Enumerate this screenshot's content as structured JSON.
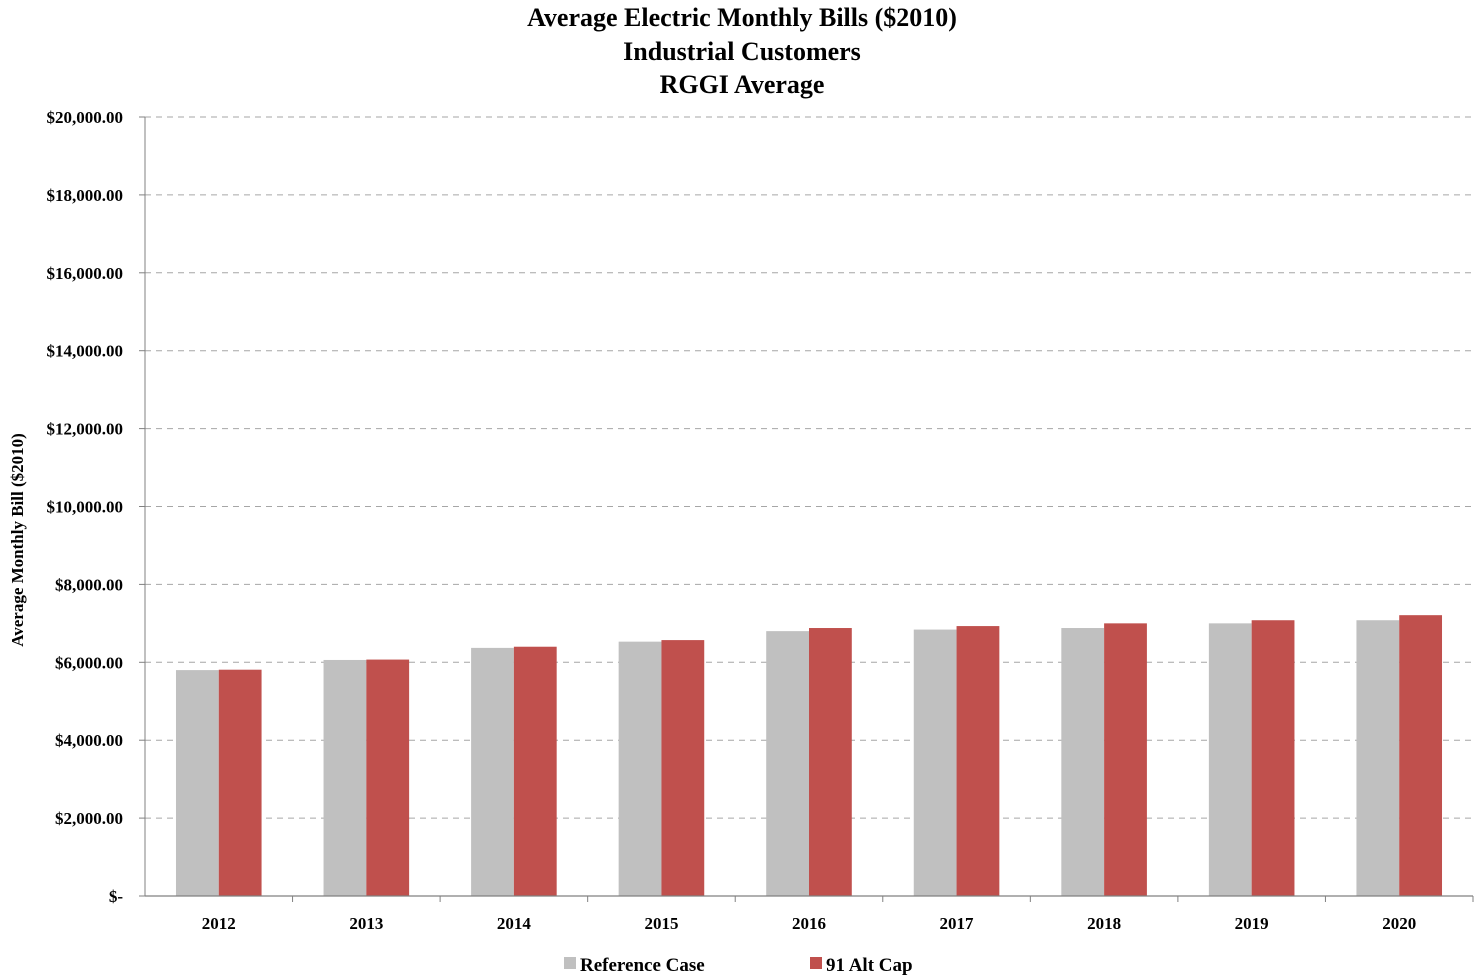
{
  "chart_data": {
    "type": "bar",
    "title_lines": [
      "Average Electric Monthly Bills ($2010)",
      "Industrial Customers",
      "RGGI Average"
    ],
    "xlabel": "",
    "ylabel": "Average  Monthly  Bill ($2010)",
    "categories": [
      "2012",
      "2013",
      "2014",
      "2015",
      "2016",
      "2017",
      "2018",
      "2019",
      "2020"
    ],
    "series": [
      {
        "name": "Reference Case",
        "color": "#c0c0c0",
        "values": [
          5800,
          6060,
          6370,
          6530,
          6800,
          6840,
          6880,
          7000,
          7080
        ]
      },
      {
        "name": "91 Alt Cap",
        "color": "#c0504d",
        "values": [
          5810,
          6070,
          6400,
          6570,
          6880,
          6930,
          7000,
          7080,
          7210
        ]
      }
    ],
    "ylim": [
      0,
      20000
    ],
    "yticks": [
      0,
      2000,
      4000,
      6000,
      8000,
      10000,
      12000,
      14000,
      16000,
      18000,
      20000
    ],
    "ytick_labels": [
      "$-",
      "$2,000.00",
      "$4,000.00",
      "$6,000.00",
      "$8,000.00",
      "$10,000.00",
      "$12,000.00",
      "$14,000.00",
      "$16,000.00",
      "$18,000.00",
      "$20,000.00"
    ],
    "grid": true,
    "grid_style": "dashed",
    "legend_position": "bottom"
  }
}
